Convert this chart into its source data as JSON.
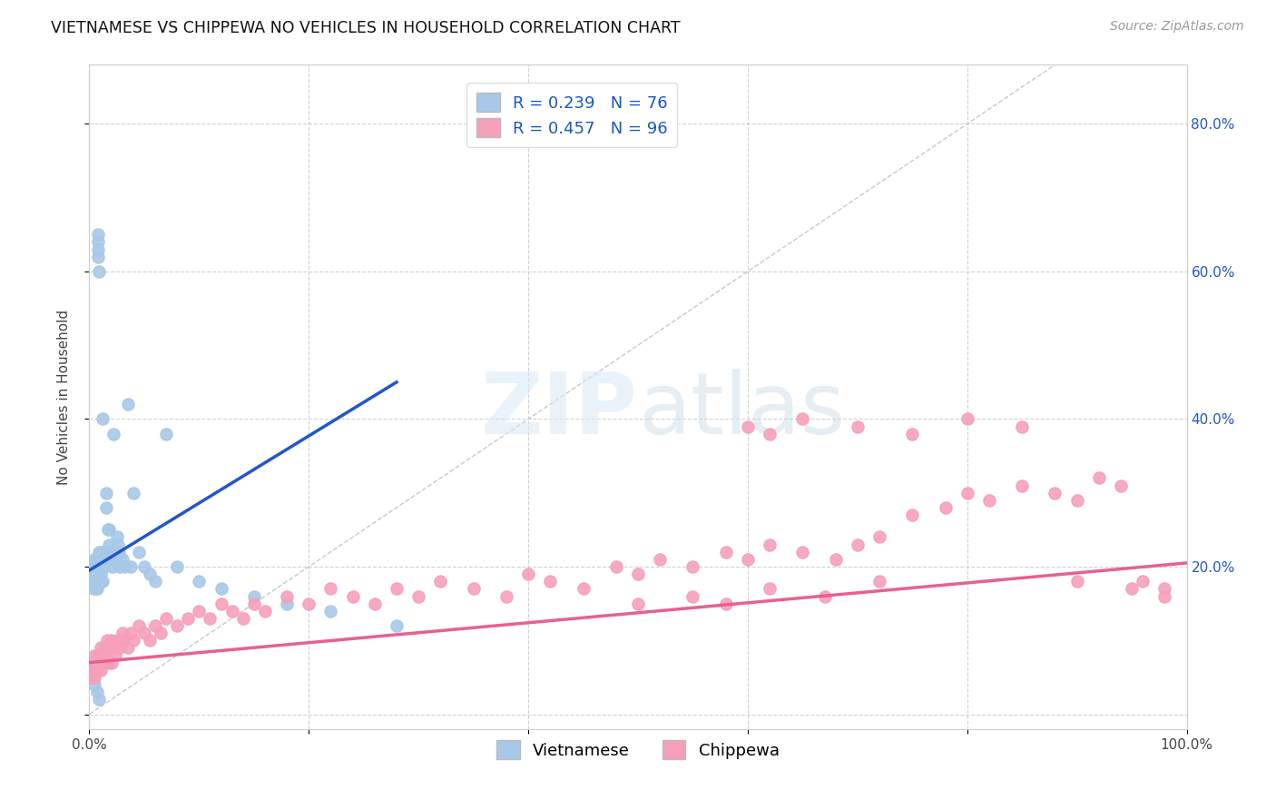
{
  "title": "VIETNAMESE VS CHIPPEWA NO VEHICLES IN HOUSEHOLD CORRELATION CHART",
  "source": "Source: ZipAtlas.com",
  "ylabel": "No Vehicles in Household",
  "xlim": [
    0.0,
    1.0
  ],
  "ylim": [
    -0.02,
    0.88
  ],
  "x_ticks": [
    0.0,
    0.2,
    0.4,
    0.6,
    0.8,
    1.0
  ],
  "x_tick_labels": [
    "0.0%",
    "",
    "",
    "",
    "",
    "100.0%"
  ],
  "y_ticks": [
    0.0,
    0.2,
    0.4,
    0.6,
    0.8
  ],
  "y_tick_labels_left": [
    "",
    "",
    "",
    "",
    ""
  ],
  "y_tick_labels_right": [
    "",
    "20.0%",
    "40.0%",
    "60.0%",
    "80.0%"
  ],
  "vietnamese_color": "#a8c8e8",
  "chippewa_color": "#f5a0b8",
  "vietnamese_line_color": "#2255cc",
  "chippewa_line_color": "#e86090",
  "diagonal_color": "#c8c8c8",
  "R_vietnamese": 0.239,
  "N_vietnamese": 76,
  "R_chippewa": 0.457,
  "N_chippewa": 96,
  "watermark_text": "ZIPatlas",
  "viet_x": [
    0.002,
    0.003,
    0.003,
    0.004,
    0.004,
    0.004,
    0.005,
    0.005,
    0.005,
    0.005,
    0.006,
    0.006,
    0.006,
    0.006,
    0.007,
    0.007,
    0.007,
    0.007,
    0.008,
    0.008,
    0.008,
    0.008,
    0.009,
    0.009,
    0.009,
    0.01,
    0.01,
    0.01,
    0.01,
    0.011,
    0.011,
    0.012,
    0.012,
    0.012,
    0.013,
    0.013,
    0.014,
    0.015,
    0.015,
    0.016,
    0.016,
    0.017,
    0.018,
    0.018,
    0.019,
    0.02,
    0.02,
    0.021,
    0.022,
    0.023,
    0.024,
    0.025,
    0.026,
    0.027,
    0.028,
    0.03,
    0.032,
    0.035,
    0.038,
    0.04,
    0.045,
    0.05,
    0.055,
    0.06,
    0.07,
    0.08,
    0.1,
    0.12,
    0.15,
    0.18,
    0.22,
    0.28,
    0.003,
    0.005,
    0.007,
    0.009
  ],
  "viet_y": [
    0.2,
    0.19,
    0.18,
    0.18,
    0.2,
    0.17,
    0.21,
    0.2,
    0.19,
    0.18,
    0.2,
    0.19,
    0.18,
    0.17,
    0.21,
    0.2,
    0.19,
    0.17,
    0.62,
    0.64,
    0.63,
    0.65,
    0.6,
    0.22,
    0.21,
    0.2,
    0.19,
    0.22,
    0.18,
    0.21,
    0.2,
    0.2,
    0.18,
    0.4,
    0.22,
    0.21,
    0.2,
    0.3,
    0.28,
    0.22,
    0.21,
    0.25,
    0.25,
    0.23,
    0.22,
    0.22,
    0.21,
    0.2,
    0.38,
    0.22,
    0.21,
    0.24,
    0.23,
    0.22,
    0.2,
    0.21,
    0.2,
    0.42,
    0.2,
    0.3,
    0.22,
    0.2,
    0.19,
    0.18,
    0.38,
    0.2,
    0.18,
    0.17,
    0.16,
    0.15,
    0.14,
    0.12,
    0.05,
    0.04,
    0.03,
    0.02
  ],
  "chip_x": [
    0.001,
    0.002,
    0.003,
    0.004,
    0.005,
    0.005,
    0.006,
    0.007,
    0.008,
    0.009,
    0.01,
    0.01,
    0.012,
    0.013,
    0.014,
    0.015,
    0.016,
    0.017,
    0.018,
    0.02,
    0.02,
    0.022,
    0.024,
    0.026,
    0.028,
    0.03,
    0.032,
    0.035,
    0.038,
    0.04,
    0.045,
    0.05,
    0.055,
    0.06,
    0.065,
    0.07,
    0.08,
    0.09,
    0.1,
    0.11,
    0.12,
    0.13,
    0.14,
    0.15,
    0.16,
    0.18,
    0.2,
    0.22,
    0.24,
    0.26,
    0.28,
    0.3,
    0.32,
    0.35,
    0.38,
    0.4,
    0.42,
    0.45,
    0.48,
    0.5,
    0.52,
    0.55,
    0.58,
    0.6,
    0.62,
    0.65,
    0.68,
    0.7,
    0.72,
    0.75,
    0.78,
    0.8,
    0.82,
    0.85,
    0.88,
    0.9,
    0.92,
    0.94,
    0.96,
    0.98,
    0.6,
    0.62,
    0.65,
    0.7,
    0.75,
    0.8,
    0.85,
    0.9,
    0.95,
    0.98,
    0.5,
    0.55,
    0.58,
    0.62,
    0.67,
    0.72
  ],
  "chip_y": [
    0.06,
    0.05,
    0.07,
    0.06,
    0.08,
    0.05,
    0.07,
    0.06,
    0.08,
    0.07,
    0.09,
    0.06,
    0.08,
    0.07,
    0.09,
    0.08,
    0.1,
    0.07,
    0.09,
    0.1,
    0.07,
    0.09,
    0.08,
    0.1,
    0.09,
    0.11,
    0.1,
    0.09,
    0.11,
    0.1,
    0.12,
    0.11,
    0.1,
    0.12,
    0.11,
    0.13,
    0.12,
    0.13,
    0.14,
    0.13,
    0.15,
    0.14,
    0.13,
    0.15,
    0.14,
    0.16,
    0.15,
    0.17,
    0.16,
    0.15,
    0.17,
    0.16,
    0.18,
    0.17,
    0.16,
    0.19,
    0.18,
    0.17,
    0.2,
    0.19,
    0.21,
    0.2,
    0.22,
    0.21,
    0.23,
    0.22,
    0.21,
    0.23,
    0.24,
    0.27,
    0.28,
    0.3,
    0.29,
    0.31,
    0.3,
    0.29,
    0.32,
    0.31,
    0.18,
    0.17,
    0.39,
    0.38,
    0.4,
    0.39,
    0.38,
    0.4,
    0.39,
    0.18,
    0.17,
    0.16,
    0.15,
    0.16,
    0.15,
    0.17,
    0.16,
    0.18
  ]
}
